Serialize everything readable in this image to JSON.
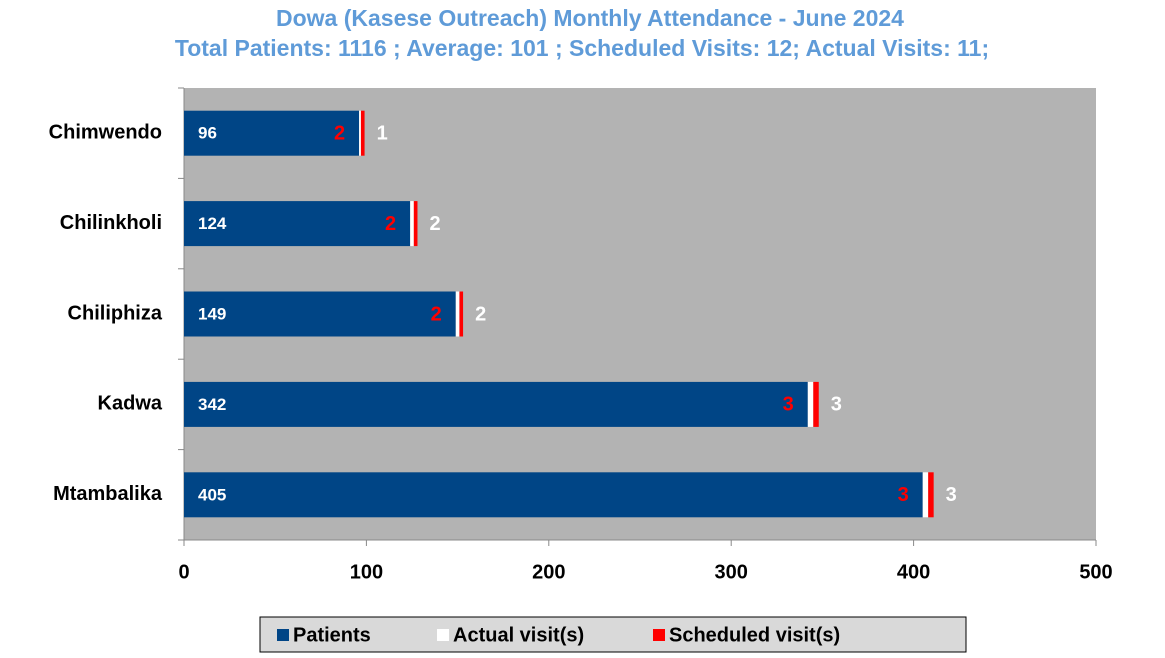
{
  "chart_data": {
    "type": "stacked_bar_horizontal",
    "title": "Dowa (Kasese Outreach)  Monthly Attendance  - June 2024",
    "subtitle": "Total Patients: 1116 ; Average: 101 ; Scheduled Visits: 12; Actual Visits: 11;",
    "categories": [
      "Chimwendo",
      "Chilinkholi",
      "Chiliphiza",
      "Kadwa",
      "Mtambalika"
    ],
    "series": [
      {
        "name": "Patients",
        "color": "#004586",
        "label_color": "#ffffff",
        "values": [
          96,
          124,
          149,
          342,
          405
        ]
      },
      {
        "name": "Actual visit(s)",
        "color": "#ffffff",
        "label_color": "#ffffff",
        "values": [
          1,
          2,
          2,
          3,
          3
        ]
      },
      {
        "name": "Scheduled visit(s)",
        "color": "#ff0000",
        "label_color": "#ff0000",
        "values": [
          2,
          2,
          2,
          3,
          3
        ]
      }
    ],
    "xlim": [
      0,
      500
    ],
    "xticks": [
      0,
      100,
      200,
      300,
      400,
      500
    ],
    "plot_background": "#b3b3b3",
    "legend": "bottom"
  }
}
